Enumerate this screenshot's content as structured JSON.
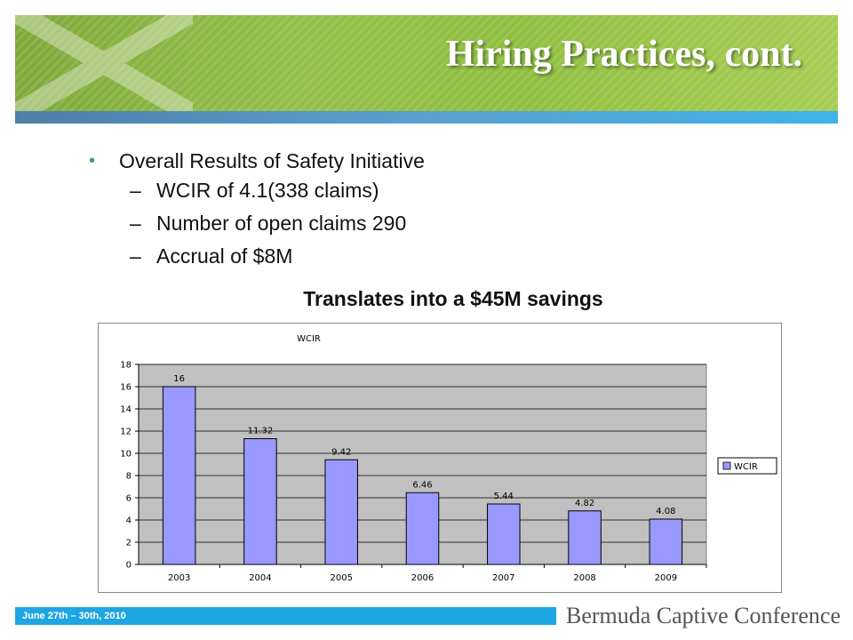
{
  "slide": {
    "title": "Hiring Practices, cont.",
    "bullets": {
      "main": "Overall Results of Safety Initiative",
      "subs": [
        "WCIR of 4.1(338 claims)",
        "Number of open claims 290",
        "Accrual of $8M"
      ]
    },
    "subheading": "Translates into a $45M savings",
    "footer_date": "June 27th – 30th, 2010",
    "brand": "Bermuda Captive Conference"
  },
  "colors": {
    "bar": "#9999ff",
    "plot_bg": "#c0c0c0",
    "header_green": "#8fbf3f",
    "footer_blue": "#1ea6e2",
    "bullet_green": "#37a35a"
  },
  "chart_data": {
    "type": "bar",
    "title": "WCIR",
    "categories": [
      "2003",
      "2004",
      "2005",
      "2006",
      "2007",
      "2008",
      "2009"
    ],
    "series": [
      {
        "name": "WCIR",
        "values": [
          16,
          11.32,
          9.42,
          6.46,
          5.44,
          4.82,
          4.08
        ]
      }
    ],
    "data_labels": [
      "16",
      "11.32",
      "9.42",
      "6.46",
      "5.44",
      "4.82",
      "4.08"
    ],
    "ylim": [
      0,
      18
    ],
    "yticks": [
      0,
      2,
      4,
      6,
      8,
      10,
      12,
      14,
      16,
      18
    ],
    "grid": true,
    "legend": "right"
  }
}
